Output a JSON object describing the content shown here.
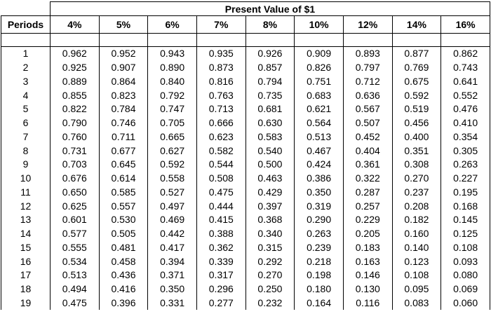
{
  "table": {
    "title": "Present Value of $1",
    "header": [
      "Periods",
      "4%",
      "5%",
      "6%",
      "7%",
      "8%",
      "10%",
      "12%",
      "14%",
      "16%"
    ],
    "rows": [
      [
        "1",
        "0.962",
        "0.952",
        "0.943",
        "0.935",
        "0.926",
        "0.909",
        "0.893",
        "0.877",
        "0.862"
      ],
      [
        "2",
        "0.925",
        "0.907",
        "0.890",
        "0.873",
        "0.857",
        "0.826",
        "0.797",
        "0.769",
        "0.743"
      ],
      [
        "3",
        "0.889",
        "0.864",
        "0.840",
        "0.816",
        "0.794",
        "0.751",
        "0.712",
        "0.675",
        "0.641"
      ],
      [
        "4",
        "0.855",
        "0.823",
        "0.792",
        "0.763",
        "0.735",
        "0.683",
        "0.636",
        "0.592",
        "0.552"
      ],
      [
        "5",
        "0.822",
        "0.784",
        "0.747",
        "0.713",
        "0.681",
        "0.621",
        "0.567",
        "0.519",
        "0.476"
      ],
      [
        "6",
        "0.790",
        "0.746",
        "0.705",
        "0.666",
        "0.630",
        "0.564",
        "0.507",
        "0.456",
        "0.410"
      ],
      [
        "7",
        "0.760",
        "0.711",
        "0.665",
        "0.623",
        "0.583",
        "0.513",
        "0.452",
        "0.400",
        "0.354"
      ],
      [
        "8",
        "0.731",
        "0.677",
        "0.627",
        "0.582",
        "0.540",
        "0.467",
        "0.404",
        "0.351",
        "0.305"
      ],
      [
        "9",
        "0.703",
        "0.645",
        "0.592",
        "0.544",
        "0.500",
        "0.424",
        "0.361",
        "0.308",
        "0.263"
      ],
      [
        "10",
        "0.676",
        "0.614",
        "0.558",
        "0.508",
        "0.463",
        "0.386",
        "0.322",
        "0.270",
        "0.227"
      ],
      [
        "11",
        "0.650",
        "0.585",
        "0.527",
        "0.475",
        "0.429",
        "0.350",
        "0.287",
        "0.237",
        "0.195"
      ],
      [
        "12",
        "0.625",
        "0.557",
        "0.497",
        "0.444",
        "0.397",
        "0.319",
        "0.257",
        "0.208",
        "0.168"
      ],
      [
        "13",
        "0.601",
        "0.530",
        "0.469",
        "0.415",
        "0.368",
        "0.290",
        "0.229",
        "0.182",
        "0.145"
      ],
      [
        "14",
        "0.577",
        "0.505",
        "0.442",
        "0.388",
        "0.340",
        "0.263",
        "0.205",
        "0.160",
        "0.125"
      ],
      [
        "15",
        "0.555",
        "0.481",
        "0.417",
        "0.362",
        "0.315",
        "0.239",
        "0.183",
        "0.140",
        "0.108"
      ],
      [
        "16",
        "0.534",
        "0.458",
        "0.394",
        "0.339",
        "0.292",
        "0.218",
        "0.163",
        "0.123",
        "0.093"
      ],
      [
        "17",
        "0.513",
        "0.436",
        "0.371",
        "0.317",
        "0.270",
        "0.198",
        "0.146",
        "0.108",
        "0.080"
      ],
      [
        "18",
        "0.494",
        "0.416",
        "0.350",
        "0.296",
        "0.250",
        "0.180",
        "0.130",
        "0.095",
        "0.069"
      ],
      [
        "19",
        "0.475",
        "0.396",
        "0.331",
        "0.277",
        "0.232",
        "0.164",
        "0.116",
        "0.083",
        "0.060"
      ]
    ]
  }
}
